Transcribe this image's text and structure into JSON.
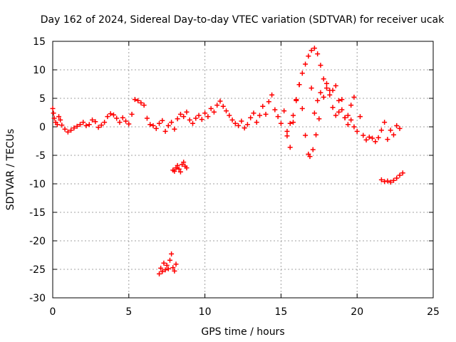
{
  "chart_data": {
    "type": "scatter",
    "title": "Day 162 of 2024, Sidereal Day-to-day VTEC variation (SDTVAR) for receiver ucak",
    "xlabel": "GPS time / hours",
    "ylabel": "SDTVAR / TECUs",
    "xlim": [
      0,
      25
    ],
    "ylim": [
      -30,
      15
    ],
    "xticks": [
      0,
      5,
      10,
      15,
      20,
      25
    ],
    "yticks": [
      -30,
      -25,
      -20,
      -15,
      -10,
      -5,
      0,
      5,
      10,
      15
    ],
    "grid": true,
    "marker": "plus",
    "series_color": "#ff0000",
    "series": [
      {
        "name": "main-trace",
        "x": [
          0.0,
          0.05,
          0.1,
          0.2,
          0.3,
          0.4,
          0.5,
          0.6,
          0.8,
          1.0,
          1.2,
          1.4,
          1.6,
          1.8,
          2.0,
          2.2,
          2.4,
          2.6,
          2.8,
          3.0,
          3.2,
          3.4,
          3.6,
          3.8,
          4.0,
          4.2,
          4.4,
          4.6,
          4.8,
          5.0,
          5.2,
          5.4,
          5.6,
          5.8,
          6.0,
          6.2,
          6.4,
          6.6,
          6.8,
          7.0,
          7.2,
          7.4,
          7.6,
          7.8,
          8.0,
          8.2,
          8.4,
          8.6,
          8.8,
          9.0,
          9.2,
          9.4,
          9.6,
          9.8,
          10.0,
          10.2,
          10.4,
          10.6,
          10.8,
          11.0,
          11.2,
          11.4,
          11.6,
          11.8,
          12.0,
          12.2,
          12.4,
          12.6,
          12.8,
          13.0,
          13.2,
          13.4,
          13.6,
          13.8,
          14.0,
          14.2,
          14.4,
          14.6,
          14.8,
          15.0,
          15.2,
          15.4,
          15.6,
          15.8,
          16.0,
          16.2,
          16.4,
          16.6,
          16.8,
          17.0,
          17.2,
          17.4,
          17.6,
          17.8,
          18.0,
          18.2,
          18.4,
          18.6,
          18.8,
          19.0,
          19.2,
          19.4,
          19.6,
          19.8,
          20.0,
          20.2,
          20.4,
          20.6,
          20.8,
          21.0,
          21.2,
          21.4,
          21.6,
          21.8,
          22.0,
          22.2,
          22.4,
          22.6,
          22.8
        ],
        "y": [
          3.2,
          2.4,
          1.5,
          0.8,
          0.4,
          1.8,
          1.2,
          0.3,
          -0.4,
          -0.9,
          -0.6,
          -0.2,
          0.1,
          0.4,
          0.8,
          0.2,
          0.4,
          1.2,
          0.9,
          -0.1,
          0.3,
          0.8,
          1.8,
          2.3,
          2.1,
          1.5,
          0.8,
          1.6,
          1.0,
          0.5,
          2.2,
          4.8,
          4.6,
          4.2,
          3.8,
          1.5,
          0.4,
          0.2,
          -0.3,
          0.6,
          1.1,
          -0.8,
          0.2,
          0.8,
          -0.4,
          1.4,
          2.2,
          1.8,
          2.6,
          1.2,
          0.6,
          1.5,
          2.0,
          1.3,
          2.4,
          1.8,
          3.2,
          2.6,
          3.8,
          4.5,
          3.6,
          2.8,
          2.0,
          1.2,
          0.6,
          0.2,
          1.0,
          -0.2,
          0.4,
          1.6,
          2.4,
          0.8,
          2.0,
          3.6,
          2.2,
          4.4,
          5.6,
          3.0,
          1.8,
          0.6,
          2.8,
          -1.6,
          -3.6,
          0.8,
          4.6,
          7.4,
          3.2,
          -1.5,
          -4.8,
          6.8,
          2.4,
          4.6,
          6.0,
          5.2,
          7.6,
          6.4,
          3.4,
          2.0,
          2.6,
          4.8,
          1.6,
          0.4,
          1.2,
          0.0,
          -0.8,
          1.8,
          -1.5,
          -2.3,
          -1.8,
          -2.0,
          -2.6,
          -1.9,
          -0.6,
          0.8,
          -2.2,
          -0.6,
          -1.4,
          0.2,
          -0.3
        ]
      },
      {
        "name": "arc-trace",
        "x": [
          15.4,
          15.6,
          15.8,
          16.0,
          16.2,
          16.4,
          16.6,
          16.8,
          17.0,
          17.2,
          17.4,
          17.6,
          17.8,
          18.0,
          18.2,
          18.4,
          18.6,
          18.8,
          19.0,
          19.2,
          19.4,
          19.6,
          19.8,
          16.9,
          17.1,
          17.3,
          17.5
        ],
        "y": [
          -0.8,
          0.6,
          2.0,
          4.8,
          7.4,
          9.4,
          11.0,
          12.4,
          13.4,
          13.8,
          12.8,
          10.8,
          8.4,
          6.8,
          5.6,
          6.4,
          7.2,
          4.6,
          3.0,
          1.6,
          2.0,
          3.8,
          5.2,
          -5.2,
          -4.0,
          -1.4,
          1.4
        ]
      },
      {
        "name": "offset-trace-8h",
        "x": [
          7.9,
          8.0,
          8.1,
          8.2,
          8.3,
          8.4,
          8.5,
          8.6,
          8.7,
          8.8,
          7.0,
          7.1,
          7.2,
          7.3,
          7.4,
          7.5,
          7.6,
          7.7,
          7.8,
          7.9,
          8.0,
          8.1
        ],
        "y": [
          -7.6,
          -7.8,
          -7.2,
          -6.8,
          -7.4,
          -7.9,
          -6.6,
          -6.2,
          -6.9,
          -7.2,
          -25.8,
          -24.8,
          -25.4,
          -23.9,
          -25.1,
          -24.3,
          -24.9,
          -23.4,
          -22.3,
          -24.7,
          -25.3,
          -24.1
        ]
      },
      {
        "name": "offset-trace-22h",
        "x": [
          21.6,
          21.8,
          22.0,
          22.2,
          22.4,
          22.6,
          22.8,
          23.0
        ],
        "y": [
          -9.3,
          -9.6,
          -9.5,
          -9.7,
          -9.4,
          -9.0,
          -8.5,
          -8.1
        ]
      }
    ]
  }
}
